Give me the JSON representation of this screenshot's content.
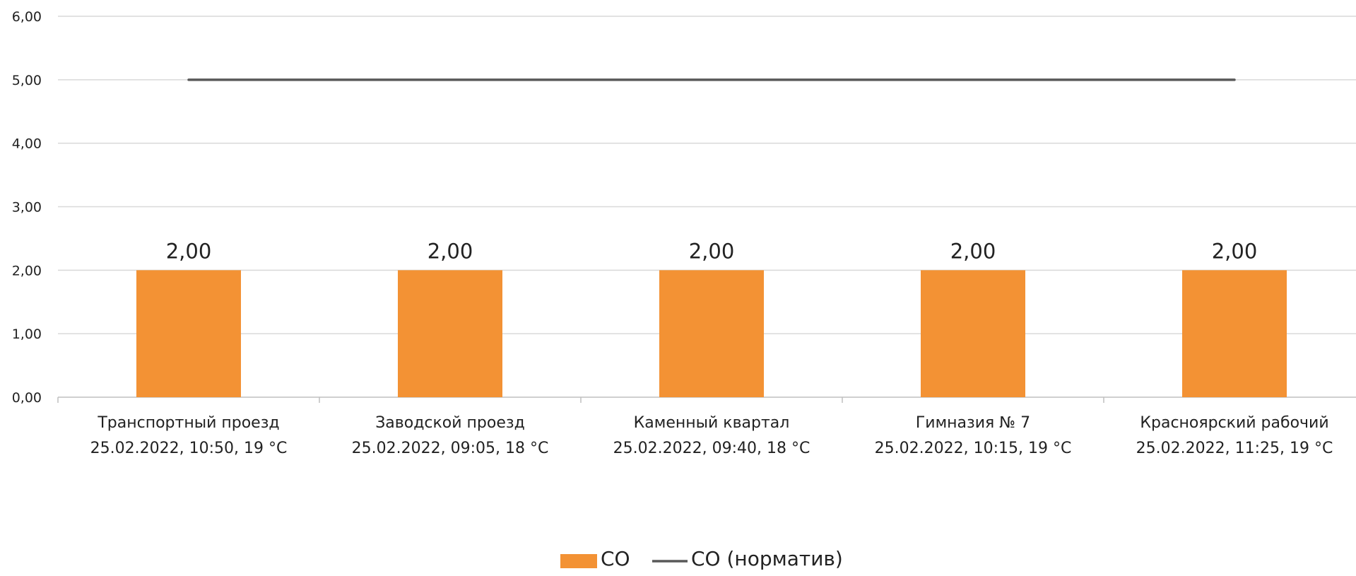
{
  "chart_data": {
    "type": "bar",
    "categories": [
      [
        "Транспортный проезд",
        "25.02.2022, 10:50, 19 °C"
      ],
      [
        "Заводской проезд",
        "25.02.2022, 09:05, 18 °C"
      ],
      [
        "Каменный квартал",
        "25.02.2022, 09:40, 18 °C"
      ],
      [
        "Гимназия № 7",
        "25.02.2022, 10:15, 19 °C"
      ],
      [
        "Красноярский рабочий",
        "25.02.2022, 11:25, 19 °C"
      ]
    ],
    "series": [
      {
        "name": "СО",
        "type": "bar",
        "color": "#F39234",
        "values": [
          2.0,
          2.0,
          2.0,
          2.0,
          2.0
        ],
        "data_labels": [
          "2,00",
          "2,00",
          "2,00",
          "2,00",
          "2,00"
        ]
      },
      {
        "name": "СО (норматив)",
        "type": "line",
        "color": "#595959",
        "values": [
          5.0,
          5.0,
          5.0,
          5.0,
          5.0
        ]
      }
    ],
    "ylim": [
      0,
      6
    ],
    "yticks": [
      0,
      1,
      2,
      3,
      4,
      5,
      6
    ],
    "ytick_labels": [
      "0,00",
      "1,00",
      "2,00",
      "3,00",
      "4,00",
      "5,00",
      "6,00"
    ],
    "grid": true,
    "legend_position": "bottom-center",
    "title": "",
    "xlabel": "",
    "ylabel": ""
  }
}
